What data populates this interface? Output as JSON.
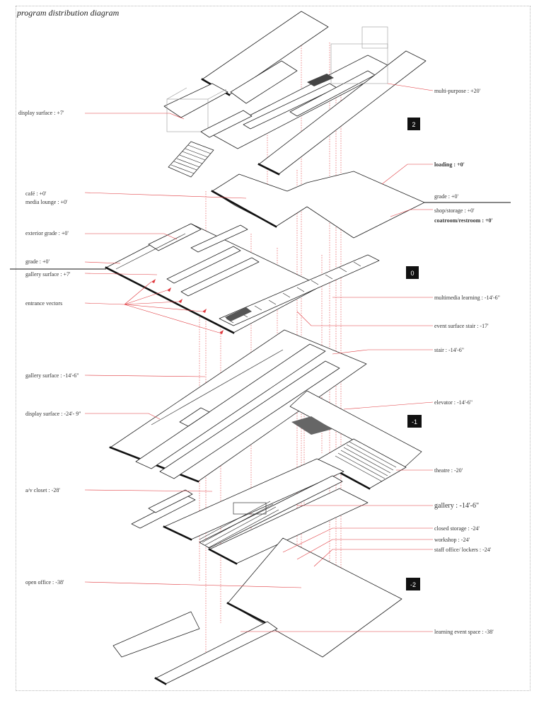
{
  "title": "program distribution diagram",
  "levels": [
    "2",
    "0",
    "-1",
    "-2"
  ],
  "labels_left": [
    "display surface : +7'",
    "café : +0'",
    "media lounge : +0'",
    "exterior grade : +0'",
    "grade : +0'",
    "gallery surface : +7'",
    "entrance vectors",
    "gallery surface : -14'-6\"",
    "display surface : -24'- 9\"",
    "a/v closet : -28'",
    "open office : -38'"
  ],
  "labels_right": [
    "multi-purpose : +20'",
    "loading : +0'",
    "grade : +0'",
    "shop/storage : +0'",
    "coatroom/restroom : +0'",
    "multimedia learning : -14'-6\"",
    "event surface stair : -17'",
    "stair : -14'-6\"",
    "elevator : -14'-6\"",
    "theatre : -20'",
    "gallery : -14'-6\"",
    "closed storage : -24'",
    "workshop : -24'",
    "staff office/ lockers : -24'",
    "learning event space : -38'"
  ],
  "colors": {
    "guide": "#e0393e",
    "line": "#222222",
    "badge": "#111111"
  }
}
